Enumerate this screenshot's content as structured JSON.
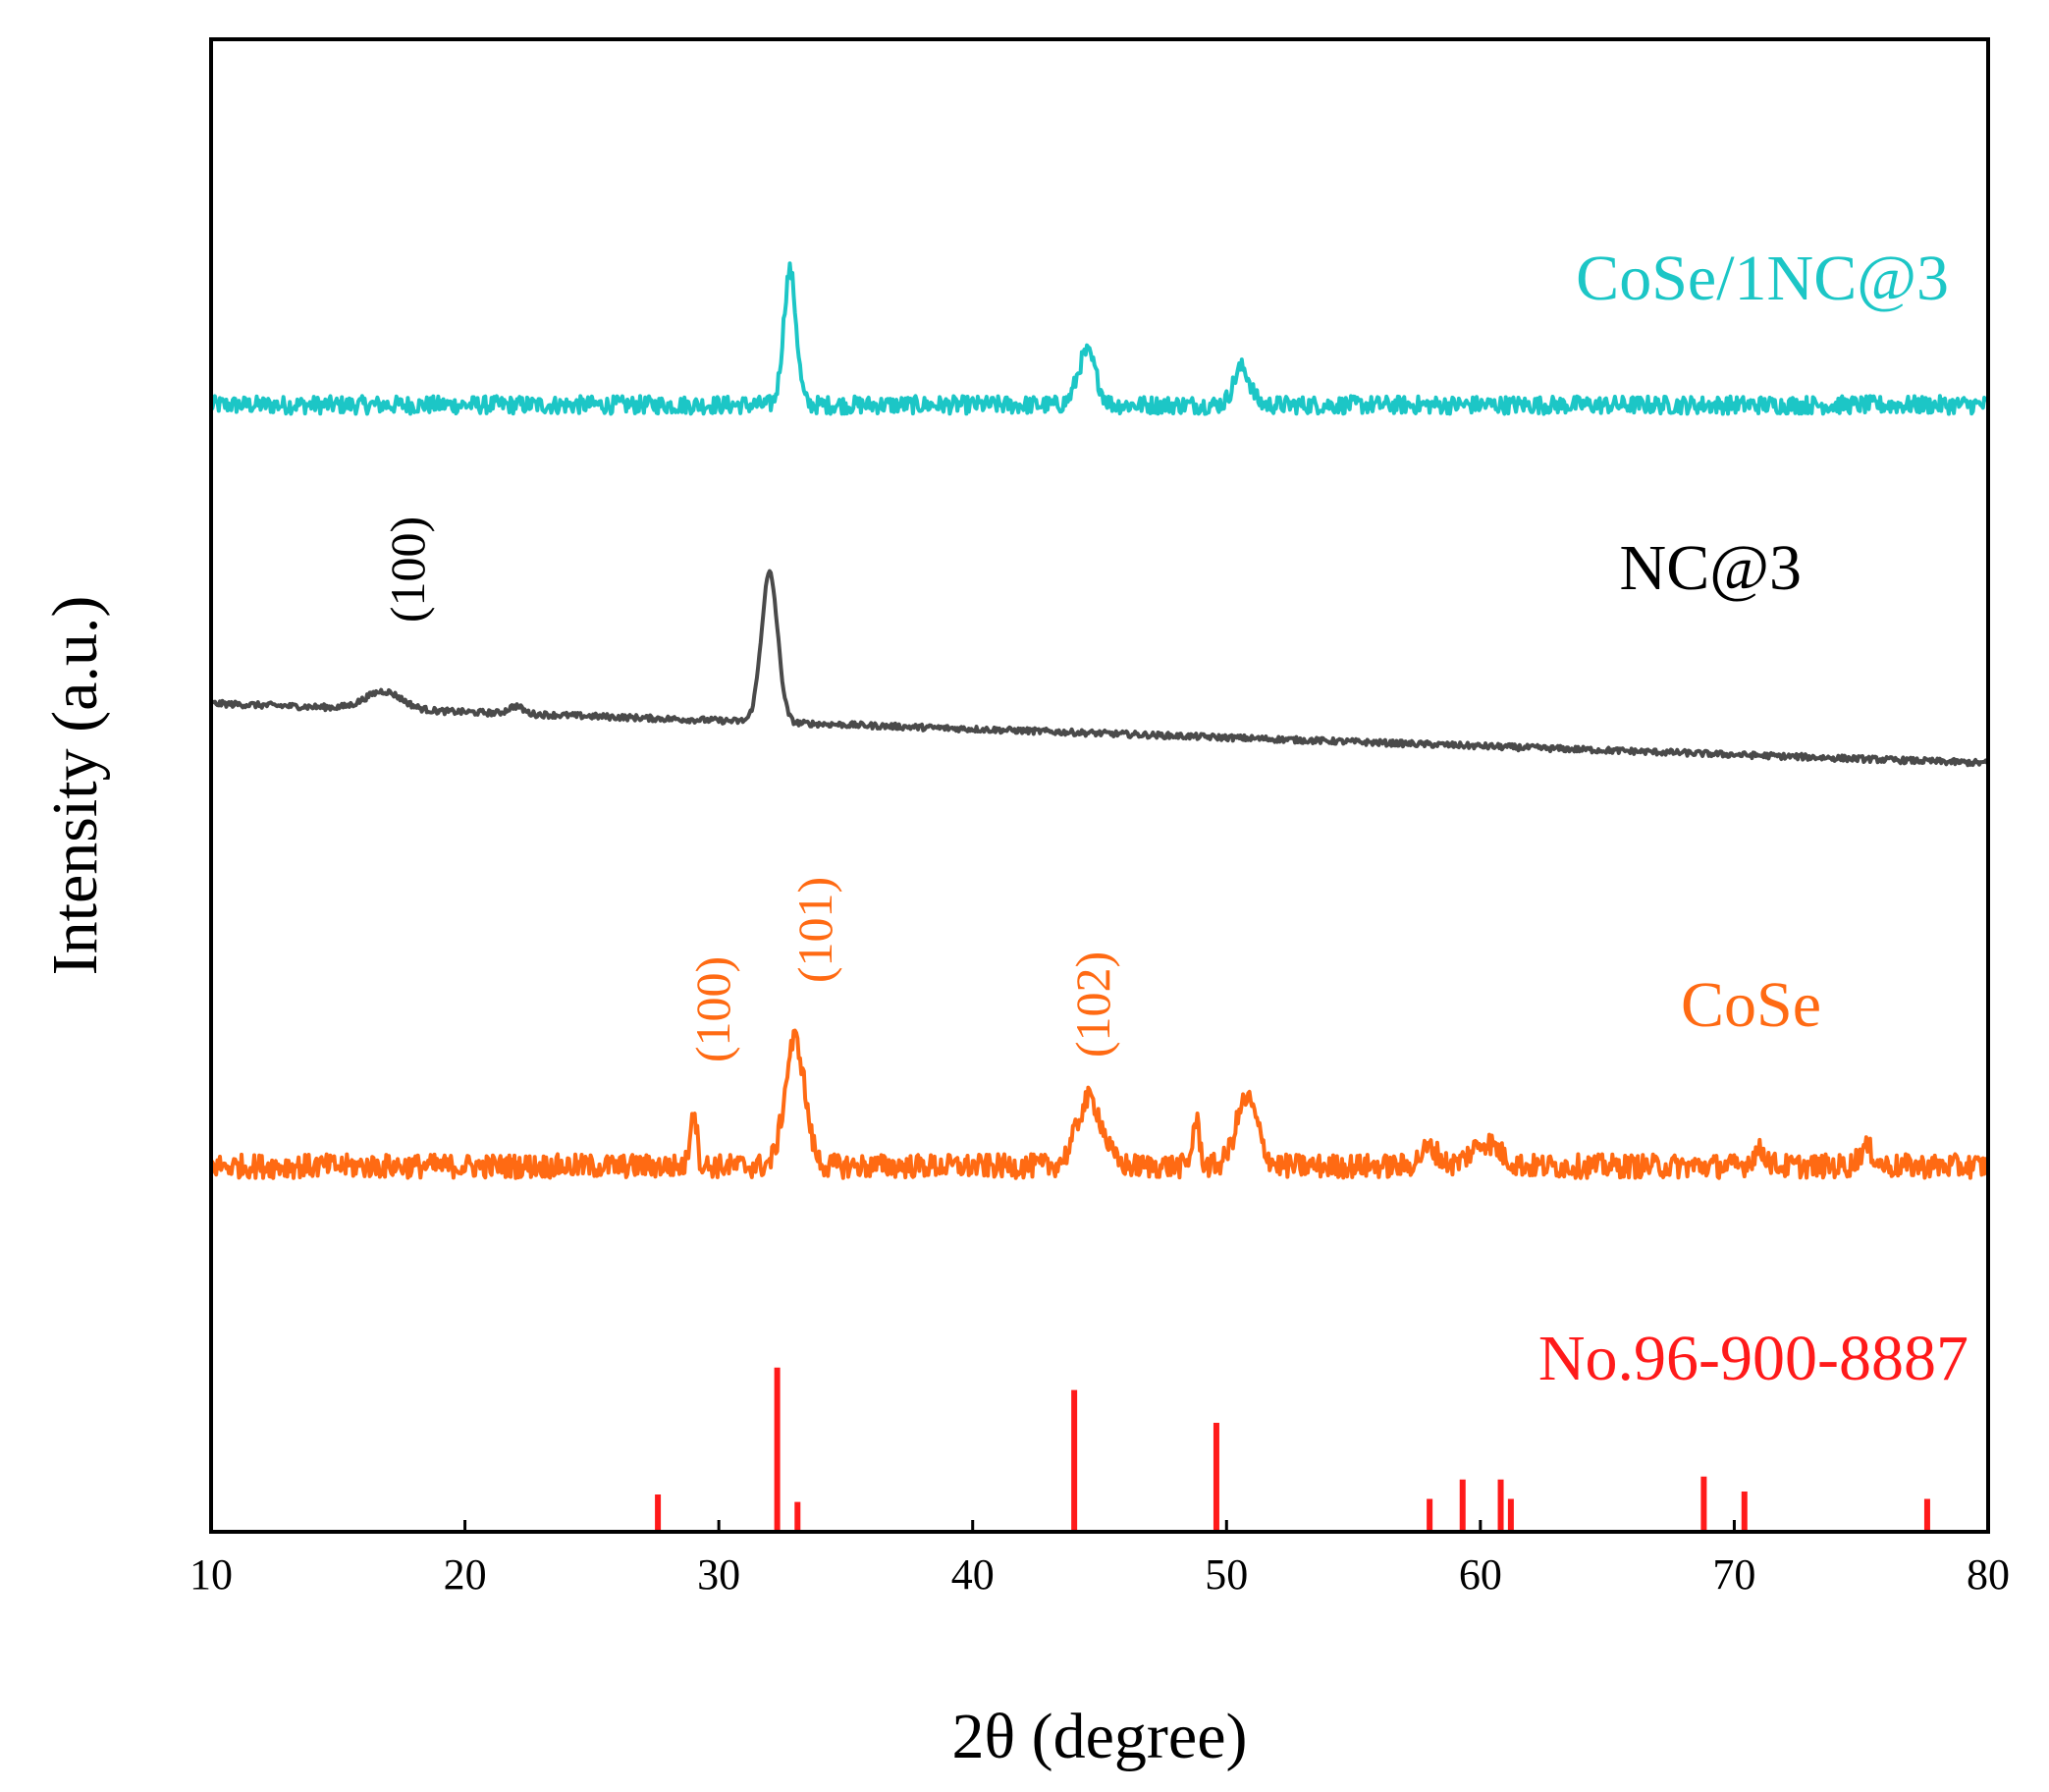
{
  "chart_data": {
    "type": "line",
    "title": "",
    "xlabel": "2θ (degree)",
    "ylabel": "Intensity (a.u.)",
    "xlim": [
      10,
      80
    ],
    "xticks": [
      "10",
      "20",
      "30",
      "40",
      "50",
      "60",
      "70",
      "80"
    ],
    "grid": false,
    "series": [
      {
        "name": "CoSe/1NC@3",
        "color": "#1cc6c6",
        "baseline": 0.755,
        "noise": 0.006,
        "peaks": [
          {
            "x": 32.8,
            "height": 0.09,
            "width": 0.35
          },
          {
            "x": 44.5,
            "height": 0.035,
            "width": 0.5
          },
          {
            "x": 50.6,
            "height": 0.025,
            "width": 0.45
          }
        ]
      },
      {
        "name": "NC@3",
        "color": "#4a4a4a",
        "baseline_start": 0.555,
        "baseline_end": 0.515,
        "noise": 0.002,
        "peaks": [
          {
            "x": 16.8,
            "height": 0.012,
            "width": 1.0
          },
          {
            "x": 22.0,
            "height": 0.005,
            "width": 0.4
          },
          {
            "x": 32.0,
            "height": 0.1,
            "width": 0.45
          }
        ]
      },
      {
        "name": "CoSe",
        "color": "#ff6a13",
        "baseline": 0.245,
        "noise": 0.008,
        "peaks": [
          {
            "x": 29.0,
            "height": 0.04,
            "width": 0.18
          },
          {
            "x": 33.0,
            "height": 0.085,
            "width": 0.55
          },
          {
            "x": 44.6,
            "height": 0.045,
            "width": 0.7
          },
          {
            "x": 48.8,
            "height": 0.03,
            "width": 0.2
          },
          {
            "x": 50.8,
            "height": 0.045,
            "width": 0.6
          },
          {
            "x": 58.0,
            "height": 0.012,
            "width": 0.5
          },
          {
            "x": 60.2,
            "height": 0.016,
            "width": 0.8
          },
          {
            "x": 71.0,
            "height": 0.01,
            "width": 0.4
          },
          {
            "x": 75.2,
            "height": 0.012,
            "width": 0.4
          }
        ]
      }
    ],
    "reference": {
      "name": "No.96-900-8887",
      "color": "#ff1a1a",
      "sticks": [
        {
          "x": 27.6,
          "intensity": 0.025
        },
        {
          "x": 32.3,
          "intensity": 0.11
        },
        {
          "x": 33.1,
          "intensity": 0.02
        },
        {
          "x": 44.0,
          "intensity": 0.095
        },
        {
          "x": 49.6,
          "intensity": 0.073
        },
        {
          "x": 58.0,
          "intensity": 0.022
        },
        {
          "x": 59.3,
          "intensity": 0.035
        },
        {
          "x": 60.8,
          "intensity": 0.035
        },
        {
          "x": 61.2,
          "intensity": 0.022
        },
        {
          "x": 68.8,
          "intensity": 0.037
        },
        {
          "x": 70.4,
          "intensity": 0.027
        },
        {
          "x": 77.6,
          "intensity": 0.022
        }
      ]
    },
    "annotations": [
      {
        "text": "(100)",
        "x": 17.3,
        "color": "#000000",
        "series": "NC@3"
      },
      {
        "text": "(100)",
        "x": 29.0,
        "color": "#ff6a13",
        "series": "CoSe"
      },
      {
        "text": "(101)",
        "x": 33.5,
        "color": "#ff6a13",
        "series": "CoSe"
      },
      {
        "text": "(102)",
        "x": 45.0,
        "color": "#ff6a13",
        "series": "CoSe"
      }
    ]
  }
}
